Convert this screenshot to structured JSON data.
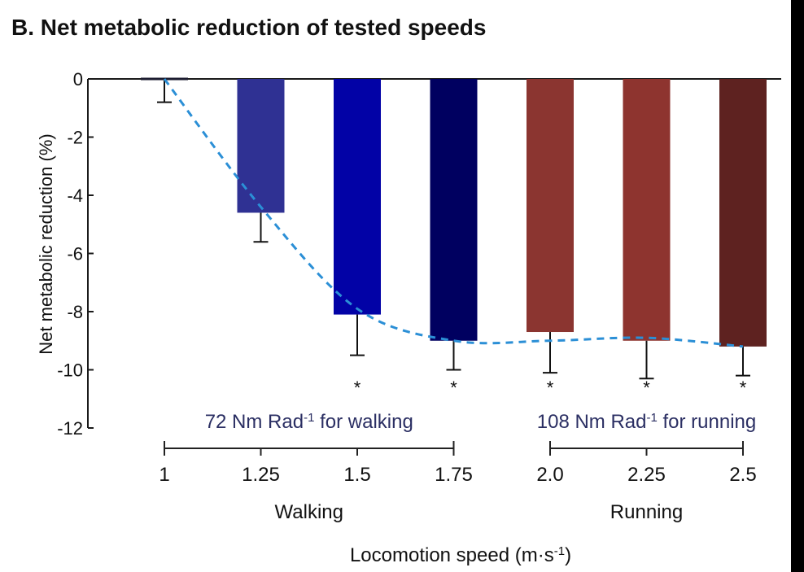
{
  "chart_data": {
    "type": "bar",
    "title": "B. Net metabolic reduction of tested speeds",
    "ylabel": "Net metabolic reduction (%)",
    "xlabel": "Locomotion speed (m·s",
    "xlabel_sup": "-1",
    "xlabel_end": ")",
    "ylim": [
      -12,
      0
    ],
    "yticks": [
      0,
      -2,
      -4,
      -6,
      -8,
      -10,
      -12
    ],
    "categories": [
      "1",
      "1.25",
      "1.5",
      "1.75",
      "2.0",
      "2.25",
      "2.5"
    ],
    "values": [
      0,
      -4.6,
      -8.1,
      -9.0,
      -8.7,
      -9.0,
      -9.2
    ],
    "error_low": [
      -0.8,
      -5.6,
      -9.5,
      -10.0,
      -10.1,
      -10.3,
      -10.2
    ],
    "colors": [
      "#1a1a2e",
      "#2f3193",
      "#0202a6",
      "#000060",
      "#8b3530",
      "#8e342f",
      "#5e2220"
    ],
    "significant": [
      false,
      false,
      true,
      true,
      true,
      true,
      true
    ],
    "significance_mark": "*",
    "trend_line": {
      "style": "dashed",
      "color": "#2b8fd6",
      "values": [
        0,
        -4.4,
        -7.9,
        -9.0,
        -9.0,
        -8.9,
        -9.2
      ]
    },
    "groups": [
      {
        "name": "Walking",
        "annotation_pre": "72 Nm Rad",
        "annotation_sup": "-1",
        "annotation_post": " for walking",
        "categories": [
          "1",
          "1.25",
          "1.5",
          "1.75"
        ]
      },
      {
        "name": "Running",
        "annotation_pre": "108 Nm Rad",
        "annotation_sup": "-1",
        "annotation_post": " for running",
        "categories": [
          "2.0",
          "2.25",
          "2.5"
        ]
      }
    ],
    "grid": false,
    "legend": "none"
  },
  "colors": {
    "axis": "#1a1a1a",
    "annotation_text": "#2b2f63",
    "right_border": "#000000"
  }
}
